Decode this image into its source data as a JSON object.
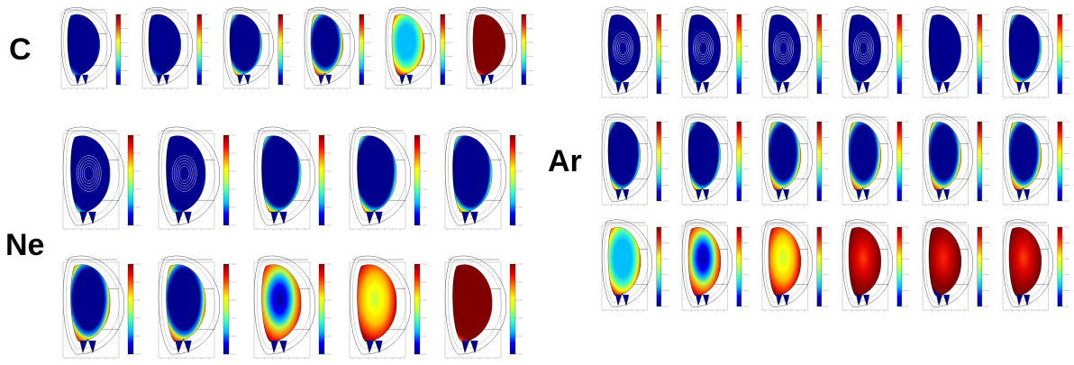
{
  "labels": {
    "c": "C",
    "ne": "Ne",
    "ar": "Ar"
  },
  "colors": {
    "background": "#ffffff",
    "colormap": [
      "#00008f",
      "#0000ff",
      "#00bfff",
      "#40ffbf",
      "#bfff40",
      "#ffff00",
      "#ff8000",
      "#ff0000",
      "#800000"
    ],
    "wall": "#555555"
  },
  "panels": [
    {
      "group": "C",
      "row": 0,
      "col": 0,
      "fill": "low"
    },
    {
      "group": "C",
      "row": 0,
      "col": 1,
      "fill": "low"
    },
    {
      "group": "C",
      "row": 0,
      "col": 2,
      "fill": "edge"
    },
    {
      "group": "C",
      "row": 0,
      "col": 3,
      "fill": "edge-strong"
    },
    {
      "group": "C",
      "row": 0,
      "col": 4,
      "fill": "cyan-core"
    },
    {
      "group": "C",
      "row": 0,
      "col": 5,
      "fill": "saturated"
    },
    {
      "group": "Ne",
      "row": 0,
      "col": 0,
      "fill": "contours"
    },
    {
      "group": "Ne",
      "row": 0,
      "col": 1,
      "fill": "contours"
    },
    {
      "group": "Ne",
      "row": 0,
      "col": 2,
      "fill": "edge"
    },
    {
      "group": "Ne",
      "row": 0,
      "col": 3,
      "fill": "edge"
    },
    {
      "group": "Ne",
      "row": 0,
      "col": 4,
      "fill": "edge"
    },
    {
      "group": "Ne",
      "row": 1,
      "col": 0,
      "fill": "edge-strong"
    },
    {
      "group": "Ne",
      "row": 1,
      "col": 1,
      "fill": "edge-strong"
    },
    {
      "group": "Ne",
      "row": 1,
      "col": 2,
      "fill": "blue-core"
    },
    {
      "group": "Ne",
      "row": 1,
      "col": 3,
      "fill": "yellow-core"
    },
    {
      "group": "Ne",
      "row": 1,
      "col": 4,
      "fill": "saturated"
    },
    {
      "group": "Ar",
      "row": 0,
      "col": 0,
      "fill": "contours"
    },
    {
      "group": "Ar",
      "row": 0,
      "col": 1,
      "fill": "contours"
    },
    {
      "group": "Ar",
      "row": 0,
      "col": 2,
      "fill": "contours"
    },
    {
      "group": "Ar",
      "row": 0,
      "col": 3,
      "fill": "contours"
    },
    {
      "group": "Ar",
      "row": 0,
      "col": 4,
      "fill": "low"
    },
    {
      "group": "Ar",
      "row": 0,
      "col": 5,
      "fill": "edge"
    },
    {
      "group": "Ar",
      "row": 1,
      "col": 0,
      "fill": "edge"
    },
    {
      "group": "Ar",
      "row": 1,
      "col": 1,
      "fill": "edge"
    },
    {
      "group": "Ar",
      "row": 1,
      "col": 2,
      "fill": "edge-strong"
    },
    {
      "group": "Ar",
      "row": 1,
      "col": 3,
      "fill": "edge-strong"
    },
    {
      "group": "Ar",
      "row": 1,
      "col": 4,
      "fill": "edge-strong"
    },
    {
      "group": "Ar",
      "row": 1,
      "col": 5,
      "fill": "edge-strong"
    },
    {
      "group": "Ar",
      "row": 2,
      "col": 0,
      "fill": "cyan-core"
    },
    {
      "group": "Ar",
      "row": 2,
      "col": 1,
      "fill": "blue-core"
    },
    {
      "group": "Ar",
      "row": 2,
      "col": 2,
      "fill": "yellow-core"
    },
    {
      "group": "Ar",
      "row": 2,
      "col": 3,
      "fill": "red-core"
    },
    {
      "group": "Ar",
      "row": 2,
      "col": 4,
      "fill": "red-ring"
    },
    {
      "group": "Ar",
      "row": 2,
      "col": 5,
      "fill": "red-core"
    }
  ]
}
